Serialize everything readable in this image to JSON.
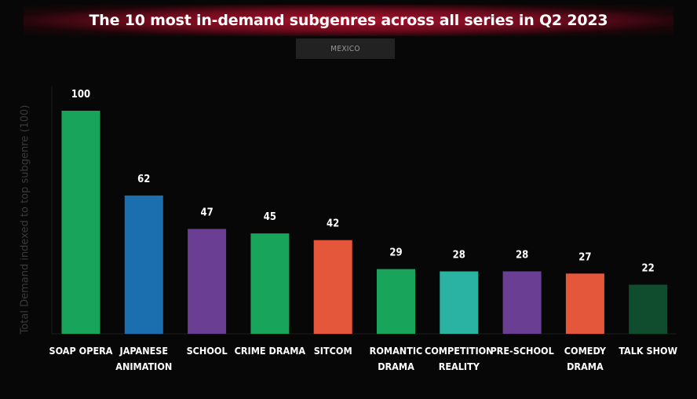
{
  "title": "The 10 most in-demand subgenres across all series in Q2 2023",
  "market_tab": "MEXICO",
  "chart_data": {
    "type": "bar",
    "title": "The 10 most in-demand subgenres across all series in Q2 2023",
    "xlabel": "",
    "ylabel": "Total Demand indexed to top subgenre (100)",
    "ylim": [
      0,
      100
    ],
    "grid": false,
    "legend": "none",
    "categories": [
      "SOAP OPERA",
      "JAPANESE ANIMATION",
      "SCHOOL",
      "CRIME DRAMA",
      "SITCOM",
      "ROMANTIC DRAMA",
      "COMPETITION REALITY",
      "PRE-SCHOOL",
      "COMEDY DRAMA",
      "TALK SHOW"
    ],
    "category_lines": [
      [
        "SOAP OPERA"
      ],
      [
        "JAPANESE",
        "ANIMATION"
      ],
      [
        "SCHOOL"
      ],
      [
        "CRIME DRAMA"
      ],
      [
        "SITCOM"
      ],
      [
        "ROMANTIC",
        "DRAMA"
      ],
      [
        "COMPETITION",
        "REALITY"
      ],
      [
        "PRE-SCHOOL"
      ],
      [
        "COMEDY",
        "DRAMA"
      ],
      [
        "TALK SHOW"
      ]
    ],
    "values": [
      100,
      62,
      47,
      45,
      42,
      29,
      28,
      28,
      27,
      22
    ],
    "data_labels": [
      "100",
      "62",
      "47",
      "45",
      "42",
      "29",
      "28",
      "28",
      "27",
      "22"
    ],
    "colors": [
      "#18a45b",
      "#1b6fae",
      "#6a3f93",
      "#18a45b",
      "#e5573a",
      "#18a45b",
      "#2ab3a3",
      "#6a3f93",
      "#e5573a",
      "#0f4d2e"
    ]
  }
}
